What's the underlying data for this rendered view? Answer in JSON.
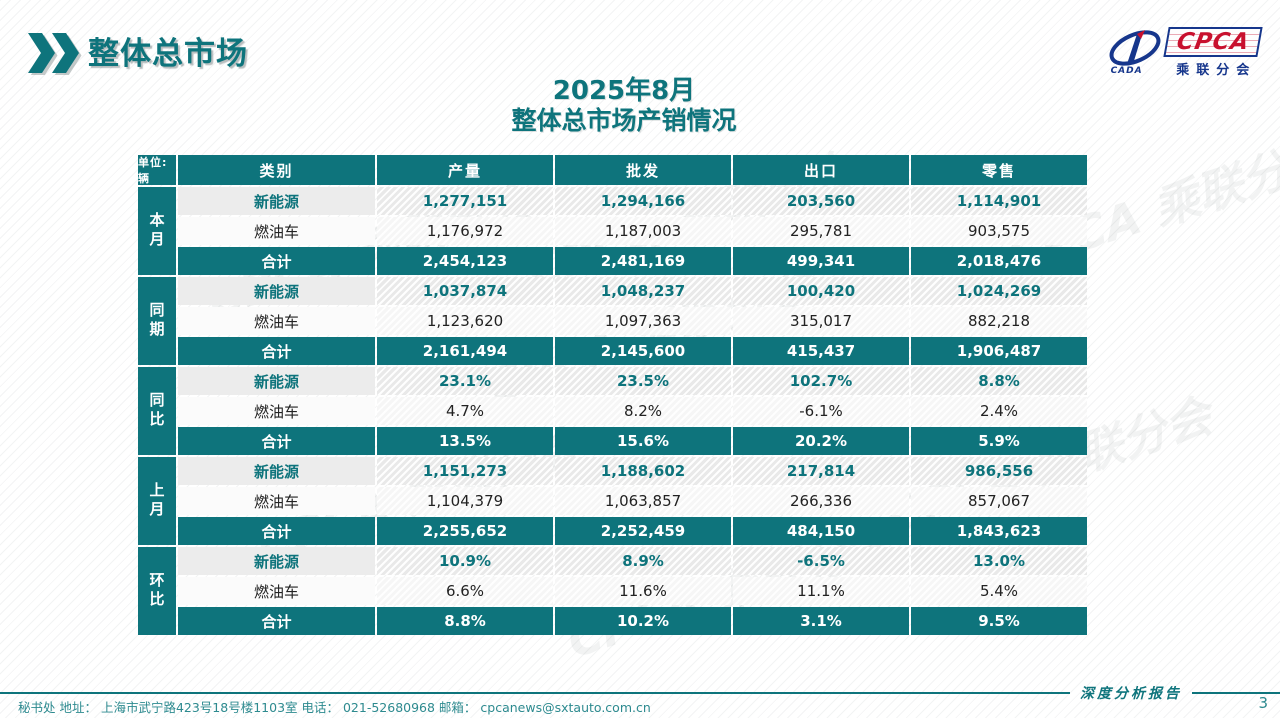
{
  "header": {
    "title": "整体总市场"
  },
  "logo": {
    "cpca_text": "CPCA",
    "cada_text": "CADA",
    "subtitle": "乘联分会"
  },
  "table_title": {
    "line1": "2025年8月",
    "line2": "整体总市场产销情况"
  },
  "table": {
    "unit_label": "单位: 辆",
    "columns": [
      "类别",
      "产量",
      "批发",
      "出口",
      "零售"
    ],
    "groups": [
      {
        "label": "本月",
        "rows": [
          {
            "category": "新能源",
            "style": "nev",
            "values": [
              "1,277,151",
              "1,294,166",
              "203,560",
              "1,114,901"
            ]
          },
          {
            "category": "燃油车",
            "style": "fuel",
            "values": [
              "1,176,972",
              "1,187,003",
              "295,781",
              "903,575"
            ]
          },
          {
            "category": "合计",
            "style": "total",
            "values": [
              "2,454,123",
              "2,481,169",
              "499,341",
              "2,018,476"
            ]
          }
        ]
      },
      {
        "label": "同期",
        "rows": [
          {
            "category": "新能源",
            "style": "nev",
            "values": [
              "1,037,874",
              "1,048,237",
              "100,420",
              "1,024,269"
            ]
          },
          {
            "category": "燃油车",
            "style": "fuel",
            "values": [
              "1,123,620",
              "1,097,363",
              "315,017",
              "882,218"
            ]
          },
          {
            "category": "合计",
            "style": "total",
            "values": [
              "2,161,494",
              "2,145,600",
              "415,437",
              "1,906,487"
            ]
          }
        ]
      },
      {
        "label": "同比",
        "rows": [
          {
            "category": "新能源",
            "style": "nev",
            "values": [
              "23.1%",
              "23.5%",
              "102.7%",
              "8.8%"
            ]
          },
          {
            "category": "燃油车",
            "style": "fuel",
            "values": [
              "4.7%",
              "8.2%",
              "-6.1%",
              "2.4%"
            ]
          },
          {
            "category": "合计",
            "style": "total",
            "values": [
              "13.5%",
              "15.6%",
              "20.2%",
              "5.9%"
            ]
          }
        ]
      },
      {
        "label": "上月",
        "rows": [
          {
            "category": "新能源",
            "style": "nev",
            "values": [
              "1,151,273",
              "1,188,602",
              "217,814",
              "986,556"
            ]
          },
          {
            "category": "燃油车",
            "style": "fuel",
            "values": [
              "1,104,379",
              "1,063,857",
              "266,336",
              "857,067"
            ]
          },
          {
            "category": "合计",
            "style": "total",
            "values": [
              "2,255,652",
              "2,252,459",
              "484,150",
              "1,843,623"
            ]
          }
        ]
      },
      {
        "label": "环比",
        "rows": [
          {
            "category": "新能源",
            "style": "nev",
            "values": [
              "10.9%",
              "8.9%",
              "-6.5%",
              "13.0%"
            ]
          },
          {
            "category": "燃油车",
            "style": "fuel",
            "values": [
              "6.6%",
              "11.6%",
              "11.1%",
              "5.4%"
            ]
          },
          {
            "category": "合计",
            "style": "total",
            "values": [
              "8.8%",
              "10.2%",
              "3.1%",
              "9.5%"
            ]
          }
        ]
      }
    ]
  },
  "footer": {
    "info": "秘书处   地址： 上海市武宁路423号18号楼1103室  电话： 021-52680968   邮箱： cpcanews@sxtauto.com.cn",
    "report_label": "深度分析报告",
    "page_number": "3"
  },
  "watermark_text": "CPCA 乘联分会",
  "colors": {
    "teal": "#0e747c",
    "footer_teal": "#2d8a8f",
    "logo_blue": "#16368c",
    "logo_red": "#c8102e"
  }
}
